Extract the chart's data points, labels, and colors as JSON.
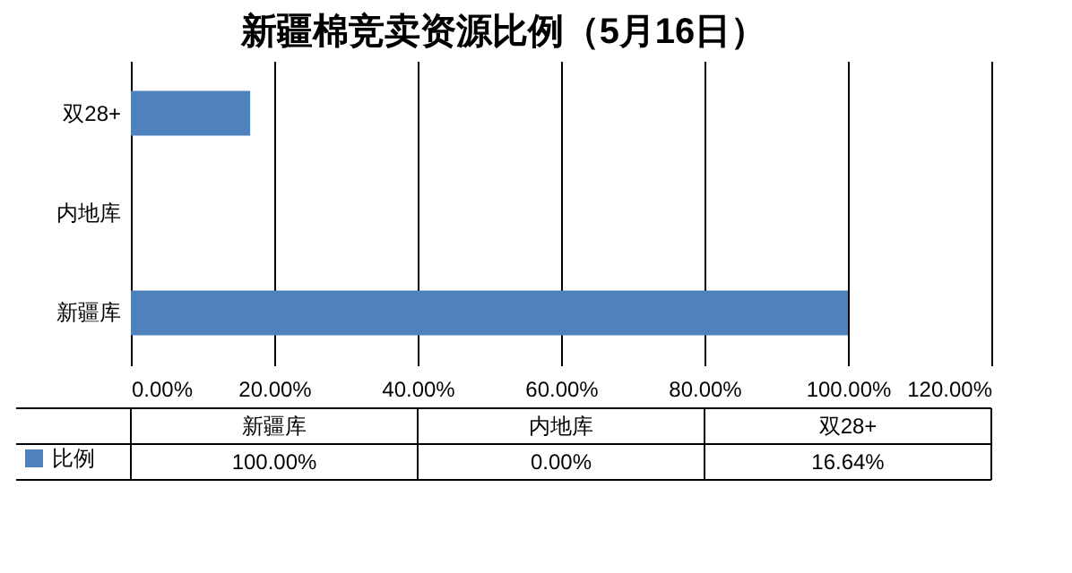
{
  "chart_data": {
    "type": "bar",
    "orientation": "horizontal",
    "title": "新疆棉竞卖资源比例（5月16日）",
    "categories": [
      "双28+",
      "内地库",
      "新疆库"
    ],
    "series": [
      {
        "name": "比例",
        "color": "#4f81bd",
        "values": [
          16.64,
          0,
          100
        ]
      }
    ],
    "annotations": [
      "100.00%",
      "0.00%",
      "16.64%"
    ],
    "xlim": [
      0,
      120
    ],
    "xticks": [
      {
        "value": 0,
        "label": "0.00%"
      },
      {
        "value": 20,
        "label": "20.00%"
      },
      {
        "value": 40,
        "label": "40.00%"
      },
      {
        "value": 60,
        "label": "60.00%"
      },
      {
        "value": 80,
        "label": "80.00%"
      },
      {
        "value": 100,
        "label": "100.00%"
      },
      {
        "value": 120,
        "label": "120.00%"
      }
    ],
    "grid": "x",
    "legend": "bottom"
  }
}
